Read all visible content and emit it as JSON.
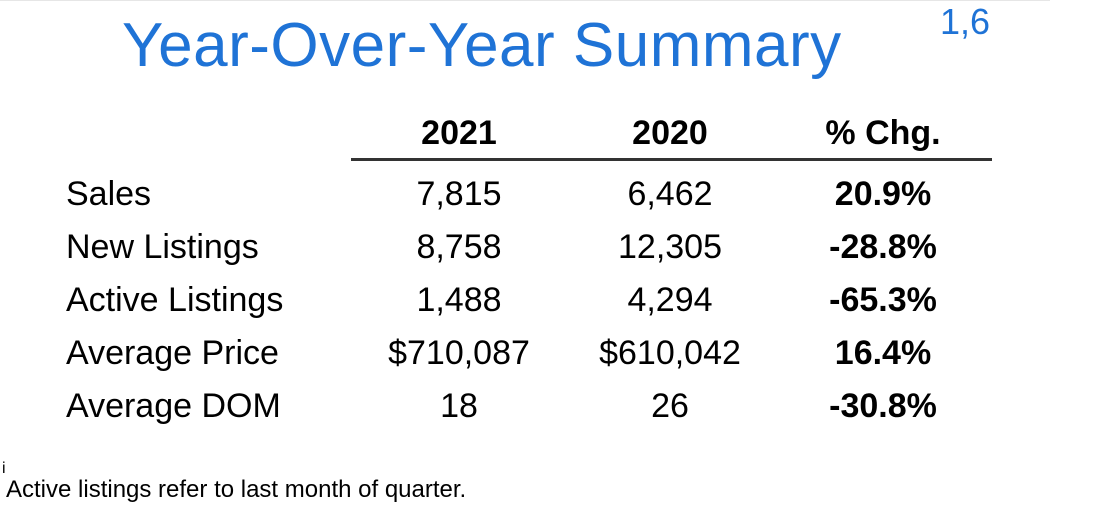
{
  "title": "Year-Over-Year Summary",
  "title_superscript": "1,6",
  "table": {
    "columns": [
      "2021",
      "2020",
      "% Chg."
    ],
    "rows": [
      {
        "label": "Sales",
        "y2021": "7,815",
        "y2020": "6,462",
        "chg": "20.9%"
      },
      {
        "label": "New Listings",
        "y2021": "8,758",
        "y2020": "12,305",
        "chg": "-28.8%"
      },
      {
        "label": "Active Listings",
        "y2021": "1,488",
        "y2020": "4,294",
        "chg": "-65.3%"
      },
      {
        "label": "Average Price",
        "y2021": "$710,087",
        "y2020": "$610,042",
        "chg": "16.4%"
      },
      {
        "label": "Average DOM",
        "y2021": "18",
        "y2020": "26",
        "chg": "-30.8%"
      }
    ]
  },
  "footnote": {
    "marker": "i",
    "text": "Active listings refer to last month of quarter."
  },
  "colors": {
    "title": "#1f73d6",
    "rule": "#333333"
  }
}
